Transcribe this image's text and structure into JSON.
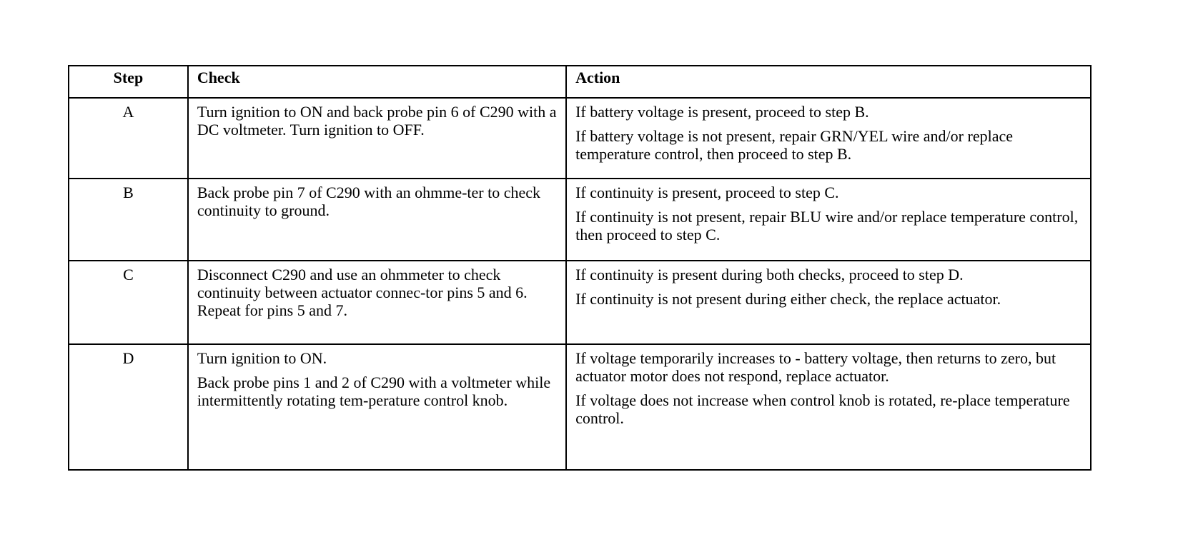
{
  "headers": {
    "step": "Step",
    "check": "Check",
    "action": "Action"
  },
  "rows": [
    {
      "step": "A",
      "check": [
        "Turn ignition to ON and back probe pin 6 of C290 with a DC voltmeter.  Turn ignition to OFF."
      ],
      "action": [
        "If battery voltage is present, proceed to step B.",
        "If battery voltage is not present, repair GRN/YEL wire and/or replace temperature control, then proceed to step B."
      ]
    },
    {
      "step": "B",
      "check": [
        "Back probe pin 7 of C290 with an ohmme-ter to check continuity to ground."
      ],
      "action": [
        "If continuity is present, proceed to step C.",
        "If continuity is not present, repair BLU wire and/or replace temperature control, then proceed to step C."
      ]
    },
    {
      "step": "C",
      "check": [
        "Disconnect C290 and use an ohmmeter to check continuity between actuator connec-tor pins 5 and 6.  Repeat for pins 5 and 7."
      ],
      "action": [
        "If continuity is present during both checks, proceed to step D.",
        "If continuity is not present during either check, the replace actuator."
      ]
    },
    {
      "step": "D",
      "check": [
        "Turn ignition to ON.",
        "Back probe pins 1 and 2 of C290 with a voltmeter while intermittently rotating tem-perature control knob."
      ],
      "action": [
        "If voltage temporarily increases to -  battery voltage, then returns to zero, but actuator motor does not respond, replace actuator.",
        "If voltage does not increase when control knob is rotated, re-place temperature control."
      ]
    }
  ]
}
